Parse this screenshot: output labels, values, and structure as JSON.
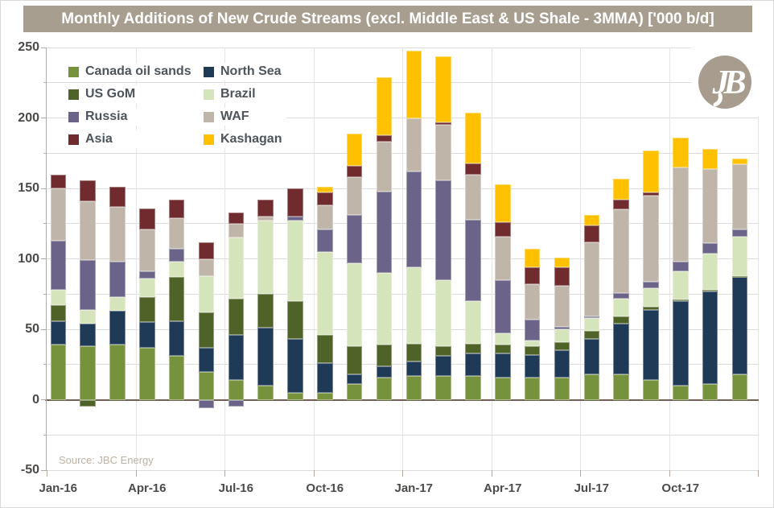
{
  "chart_data": {
    "type": "bar",
    "variant": "stacked-column",
    "title": "Monthly Additions of New Crude Streams (excl. Middle East & US Shale - 3MMA) ['000 b/d]",
    "source": "Source: JBC Energy",
    "ylim": [
      -50,
      250
    ],
    "y_tick_labels": [
      250,
      200,
      150,
      100,
      50,
      0,
      -50
    ],
    "grid_step": 25,
    "grid": true,
    "legend_position": "top-left-inside",
    "x_tick_labels": [
      "Jan-16",
      "Apr-16",
      "Jul-16",
      "Oct-16",
      "Jan-17",
      "Apr-17",
      "Jul-17",
      "Oct-17"
    ],
    "categories": [
      "Jan-16",
      "Feb-16",
      "Mar-16",
      "Apr-16",
      "May-16",
      "Jun-16",
      "Jul-16",
      "Aug-16",
      "Sep-16",
      "Oct-16",
      "Nov-16",
      "Dec-16",
      "Jan-17",
      "Feb-17",
      "Mar-17",
      "Apr-17",
      "May-17",
      "Jun-17",
      "Jul-17",
      "Aug-17",
      "Sep-17",
      "Oct-17",
      "Nov-17",
      "Dec-17"
    ],
    "series": [
      {
        "name": "Canada oil sands",
        "color": "#76923C",
        "values": [
          39,
          38,
          39,
          37,
          31,
          20,
          14,
          10,
          5,
          5,
          11,
          16,
          17,
          17,
          17,
          16,
          16,
          16,
          18,
          18,
          14,
          10,
          11,
          18
        ]
      },
      {
        "name": "North Sea",
        "color": "#1F3A56",
        "values": [
          17,
          16,
          24,
          18,
          25,
          17,
          32,
          41,
          38,
          21,
          7,
          8,
          10,
          14,
          16,
          17,
          16,
          19,
          25,
          36,
          50,
          60,
          66,
          69
        ]
      },
      {
        "name": "US GoM",
        "color": "#4F6228",
        "values": [
          11,
          -5,
          0,
          18,
          31,
          25,
          26,
          24,
          27,
          20,
          20,
          15,
          13,
          7,
          7,
          6,
          6,
          6,
          6,
          5,
          2,
          1,
          1,
          1
        ]
      },
      {
        "name": "Brazil",
        "color": "#D6E4BC",
        "values": [
          11,
          10,
          10,
          13,
          11,
          26,
          43,
          52,
          57,
          59,
          59,
          51,
          54,
          47,
          30,
          8,
          4,
          9,
          9,
          13,
          13,
          20,
          26,
          28
        ]
      },
      {
        "name": "Russia",
        "color": "#6C6488",
        "values": [
          35,
          35,
          25,
          5,
          9,
          -6,
          -5,
          0,
          3,
          16,
          34,
          58,
          68,
          71,
          58,
          38,
          15,
          2,
          1,
          4,
          5,
          7,
          7,
          5
        ]
      },
      {
        "name": "WAF",
        "color": "#BFB5A8",
        "values": [
          37,
          42,
          39,
          30,
          22,
          12,
          10,
          3,
          0,
          17,
          27,
          35,
          38,
          39,
          32,
          31,
          25,
          29,
          53,
          59,
          61,
          67,
          53,
          46
        ]
      },
      {
        "name": "Asia",
        "color": "#6F2B2D",
        "values": [
          10,
          15,
          14,
          15,
          13,
          12,
          8,
          12,
          20,
          9,
          8,
          5,
          0,
          2,
          8,
          10,
          12,
          13,
          12,
          7,
          2,
          0,
          0,
          0
        ]
      },
      {
        "name": "Kashagan",
        "color": "#FFC000",
        "values": [
          0,
          0,
          0,
          0,
          0,
          0,
          0,
          0,
          0,
          4,
          23,
          41,
          48,
          47,
          36,
          27,
          13,
          7,
          7,
          15,
          30,
          21,
          14,
          4
        ]
      }
    ],
    "colors": {
      "title_bar_bg": "#A89E90",
      "title_text": "#FFFFFF",
      "gridline": "#DCDCDC",
      "zero_line": "#6F6156",
      "axis_label": "#4C4A48",
      "legend_label": "#4E545B",
      "source_text": "#BCB1A3",
      "logo_circle": "#A79C8D"
    }
  },
  "logo": {
    "monogram": "JB",
    "alt_name": "jbc-energy-logo"
  }
}
